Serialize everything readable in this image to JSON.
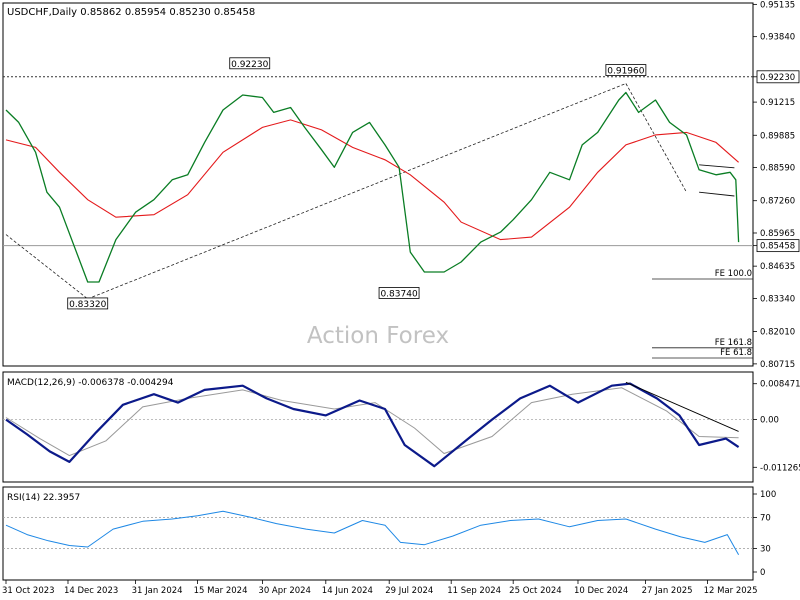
{
  "chart_data": {
    "type": "line",
    "main": {
      "header": "USDCHF,Daily 0.85862 0.85954 0.85230 0.85458",
      "symbol": "USDCHF",
      "timeframe": "Daily",
      "ohlc_last": {
        "open": 0.85862,
        "high": 0.85954,
        "low": 0.8523,
        "close": 0.85458
      },
      "price_ticks": [
        "0.95135",
        "0.93840",
        "0.92230",
        "0.91215",
        "0.89885",
        "0.88590",
        "0.87260",
        "0.85965",
        "0.85458",
        "0.84635",
        "0.83340",
        "0.82010",
        "0.80715"
      ],
      "ylim": [
        0.8067,
        0.9515
      ],
      "x_dates": [
        "31 Oct 2023",
        "14 Dec 2023",
        "31 Jan 2024",
        "15 Mar 2024",
        "30 Apr 2024",
        "14 Jun 2024",
        "29 Jul 2024",
        "11 Sep 2024",
        "25 Oct 2024",
        "10 Dec 2024",
        "27 Jan 2025",
        "12 Mar 2025"
      ],
      "price_series": {
        "name": "",
        "x": [
          "2023-10-31",
          "2023-11-09",
          "2023-11-21",
          "2023-11-29",
          "2023-12-08",
          "2023-12-28",
          "2024-01-05",
          "2024-01-17",
          "2024-01-31",
          "2024-02-13",
          "2024-02-26",
          "2024-03-08",
          "2024-03-20",
          "2024-04-02",
          "2024-04-16",
          "2024-04-30",
          "2024-05-08",
          "2024-05-20",
          "2024-05-30",
          "2024-06-11",
          "2024-06-20",
          "2024-07-03",
          "2024-07-15",
          "2024-07-26",
          "2024-08-05",
          "2024-08-13",
          "2024-08-23",
          "2024-09-06",
          "2024-09-18",
          "2024-10-02",
          "2024-10-16",
          "2024-10-25",
          "2024-11-07",
          "2024-11-20",
          "2024-12-04",
          "2024-12-13",
          "2024-12-24",
          "2025-01-08",
          "2025-01-13",
          "2025-01-22",
          "2025-02-03",
          "2025-02-13",
          "2025-02-25",
          "2025-03-06",
          "2025-03-18",
          "2025-03-28",
          "2025-04-01",
          "2025-04-03"
        ],
        "y": [
          0.909,
          0.904,
          0.892,
          0.876,
          0.87,
          0.84,
          0.84,
          0.857,
          0.868,
          0.873,
          0.881,
          0.883,
          0.896,
          0.909,
          0.915,
          0.914,
          0.908,
          0.91,
          0.902,
          0.893,
          0.886,
          0.9,
          0.904,
          0.895,
          0.886,
          0.852,
          0.844,
          0.844,
          0.848,
          0.856,
          0.86,
          0.865,
          0.873,
          0.884,
          0.881,
          0.895,
          0.9,
          0.913,
          0.916,
          0.908,
          0.913,
          0.904,
          0.899,
          0.885,
          0.883,
          0.884,
          0.881,
          0.856
        ]
      },
      "ma_series": {
        "name": "",
        "color": "#e41a1c",
        "x": [
          "2023-10-31",
          "2023-11-21",
          "2023-12-08",
          "2023-12-28",
          "2024-01-17",
          "2024-02-13",
          "2024-03-08",
          "2024-04-02",
          "2024-04-30",
          "2024-05-20",
          "2024-06-11",
          "2024-07-03",
          "2024-07-26",
          "2024-08-13",
          "2024-09-06",
          "2024-09-18",
          "2024-10-16",
          "2024-11-07",
          "2024-12-04",
          "2024-12-24",
          "2025-01-13",
          "2025-02-03",
          "2025-02-25",
          "2025-03-18",
          "2025-04-03"
        ],
        "y": [
          0.897,
          0.894,
          0.884,
          0.873,
          0.866,
          0.867,
          0.875,
          0.892,
          0.902,
          0.905,
          0.901,
          0.894,
          0.889,
          0.883,
          0.872,
          0.864,
          0.857,
          0.858,
          0.87,
          0.884,
          0.895,
          0.899,
          0.9,
          0.896,
          0.888
        ]
      },
      "reference_lines": [
        {
          "label": "0.92230",
          "value": 0.9223,
          "style": "dotted",
          "highlight": true
        },
        {
          "label": "0.85458",
          "value": 0.85458,
          "style": "solid",
          "highlight": true
        }
      ],
      "fe_levels": [
        {
          "label": "FE 100.0",
          "value": 0.8412
        },
        {
          "label": "FE 161.8",
          "value": 0.8136
        },
        {
          "label": "FE 61.8",
          "value": 0.8095
        }
      ],
      "annotations": [
        {
          "text": "0.92230",
          "date": "2024-04-21",
          "price": 0.9223
        },
        {
          "text": "0.83320",
          "date": "2023-12-28",
          "price": 0.8332
        },
        {
          "text": "0.83740",
          "date": "2024-08-05",
          "price": 0.8374
        },
        {
          "text": "0.91960",
          "date": "2025-01-13",
          "price": 0.9196
        }
      ],
      "trendlines": [
        {
          "x": [
            "2023-10-31",
            "2023-12-28"
          ],
          "y": [
            0.859,
            0.8332
          ]
        },
        {
          "x": [
            "2023-12-28",
            "2025-01-13"
          ],
          "y": [
            0.8332,
            0.9196
          ]
        },
        {
          "x": [
            "2025-01-13",
            "2025-02-25"
          ],
          "y": [
            0.9196,
            0.876
          ]
        }
      ],
      "channel": {
        "x": [
          "2025-03-06",
          "2025-03-31"
        ],
        "upper": [
          0.887,
          0.8858
        ],
        "lower": [
          0.876,
          0.8745
        ]
      },
      "watermark": "Action Forex"
    },
    "macd": {
      "header": "MACD(12,26,9) -0.006378 -0.004294",
      "ticks": [
        "0.008471",
        "0.00",
        "-0.011265"
      ],
      "ylim": [
        -0.0145,
        0.011
      ],
      "macd_series": {
        "name": "",
        "x": [
          "2023-10-31",
          "2023-11-15",
          "2023-12-01",
          "2023-12-15",
          "2024-01-03",
          "2024-01-22",
          "2024-02-13",
          "2024-03-01",
          "2024-03-20",
          "2024-04-16",
          "2024-05-03",
          "2024-05-22",
          "2024-06-14",
          "2024-07-08",
          "2024-07-26",
          "2024-08-09",
          "2024-08-30",
          "2024-09-25",
          "2024-10-10",
          "2024-10-30",
          "2024-11-20",
          "2024-12-10",
          "2025-01-03",
          "2025-01-16",
          "2025-02-04",
          "2025-02-20",
          "2025-03-06",
          "2025-03-25",
          "2025-04-03"
        ],
        "y": [
          0.0,
          -0.0035,
          -0.0075,
          -0.01,
          -0.003,
          0.0035,
          0.006,
          0.004,
          0.007,
          0.008,
          0.005,
          0.0025,
          0.001,
          0.0045,
          0.0025,
          -0.006,
          -0.011,
          -0.004,
          0.0,
          0.005,
          0.008,
          0.004,
          0.008,
          0.0085,
          0.005,
          0.001,
          -0.006,
          -0.0045,
          -0.0065
        ]
      },
      "signal_series": {
        "name": "",
        "x": [
          "2023-10-31",
          "2023-11-24",
          "2023-12-15",
          "2024-01-10",
          "2024-02-05",
          "2024-03-08",
          "2024-04-16",
          "2024-05-14",
          "2024-06-20",
          "2024-07-19",
          "2024-08-16",
          "2024-09-06",
          "2024-10-10",
          "2024-11-07",
          "2024-12-06",
          "2025-01-10",
          "2025-02-11",
          "2025-03-06",
          "2025-04-03"
        ],
        "y": [
          0.0005,
          -0.0045,
          -0.0085,
          -0.005,
          0.003,
          0.005,
          0.007,
          0.0045,
          0.0025,
          0.004,
          -0.002,
          -0.008,
          -0.004,
          0.004,
          0.006,
          0.0075,
          0.002,
          -0.004,
          -0.0043
        ]
      },
      "trendline": {
        "x": [
          "2025-01-13",
          "2025-04-03"
        ],
        "y": [
          0.0088,
          -0.0028
        ]
      }
    },
    "rsi": {
      "header": "RSI(14) 22.3957",
      "ticks": [
        "100",
        "70",
        "30",
        "0"
      ],
      "ylim": [
        0,
        100
      ],
      "levels": [
        70,
        30
      ],
      "rsi_series": {
        "name": "",
        "color": "#1e88e5",
        "x": [
          "2023-10-31",
          "2023-11-15",
          "2023-11-30",
          "2023-12-15",
          "2023-12-28",
          "2024-01-15",
          "2024-02-05",
          "2024-02-26",
          "2024-03-15",
          "2024-04-02",
          "2024-04-22",
          "2024-05-10",
          "2024-05-31",
          "2024-06-20",
          "2024-07-10",
          "2024-07-26",
          "2024-08-06",
          "2024-08-23",
          "2024-09-12",
          "2024-10-02",
          "2024-10-23",
          "2024-11-12",
          "2024-12-04",
          "2024-12-24",
          "2025-01-13",
          "2025-02-03",
          "2025-02-21",
          "2025-03-10",
          "2025-03-26",
          "2025-04-03"
        ],
        "y": [
          60,
          48,
          40,
          34,
          32,
          55,
          65,
          68,
          72,
          78,
          70,
          62,
          55,
          50,
          66,
          60,
          38,
          35,
          46,
          60,
          66,
          68,
          58,
          66,
          68,
          55,
          45,
          38,
          48,
          22
        ]
      }
    }
  }
}
